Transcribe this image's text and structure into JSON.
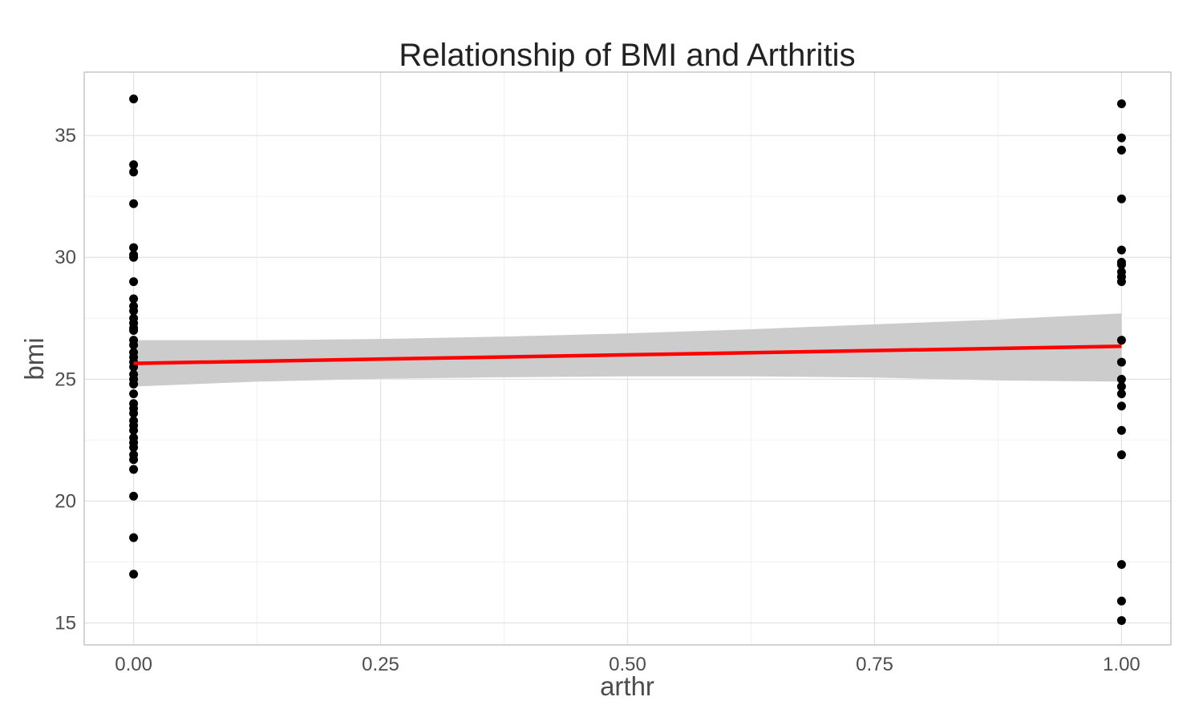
{
  "chart_data": {
    "type": "scatter",
    "title": "Relationship of BMI and Arthritis",
    "xlabel": "arthr",
    "ylabel": "bmi",
    "xlim": [
      -0.05,
      1.05
    ],
    "ylim": [
      14.1,
      37.6
    ],
    "x_ticks": [
      0.0,
      0.25,
      0.5,
      0.75,
      1.0
    ],
    "x_tick_labels": [
      "0.00",
      "0.25",
      "0.50",
      "0.75",
      "1.00"
    ],
    "y_ticks": [
      15,
      20,
      25,
      30,
      35
    ],
    "y_tick_labels": [
      "15",
      "20",
      "25",
      "30",
      "35"
    ],
    "grid": true,
    "theme": "light",
    "points": [
      {
        "x": 0,
        "y": 36.5
      },
      {
        "x": 0,
        "y": 33.8
      },
      {
        "x": 0,
        "y": 33.5
      },
      {
        "x": 0,
        "y": 32.2
      },
      {
        "x": 0,
        "y": 30.4
      },
      {
        "x": 0,
        "y": 30.1
      },
      {
        "x": 0,
        "y": 30.0
      },
      {
        "x": 0,
        "y": 29.0
      },
      {
        "x": 0,
        "y": 28.3
      },
      {
        "x": 0,
        "y": 28.0
      },
      {
        "x": 0,
        "y": 27.8
      },
      {
        "x": 0,
        "y": 27.5
      },
      {
        "x": 0,
        "y": 27.3
      },
      {
        "x": 0,
        "y": 27.1
      },
      {
        "x": 0,
        "y": 27.0
      },
      {
        "x": 0,
        "y": 26.6
      },
      {
        "x": 0,
        "y": 26.4
      },
      {
        "x": 0,
        "y": 26.1
      },
      {
        "x": 0,
        "y": 25.9
      },
      {
        "x": 0,
        "y": 25.7
      },
      {
        "x": 0,
        "y": 25.5
      },
      {
        "x": 0,
        "y": 25.2
      },
      {
        "x": 0,
        "y": 25.0
      },
      {
        "x": 0,
        "y": 24.8
      },
      {
        "x": 0,
        "y": 24.4
      },
      {
        "x": 0,
        "y": 24.0
      },
      {
        "x": 0,
        "y": 23.8
      },
      {
        "x": 0,
        "y": 23.6
      },
      {
        "x": 0,
        "y": 23.3
      },
      {
        "x": 0,
        "y": 23.1
      },
      {
        "x": 0,
        "y": 22.9
      },
      {
        "x": 0,
        "y": 22.6
      },
      {
        "x": 0,
        "y": 22.4
      },
      {
        "x": 0,
        "y": 22.2
      },
      {
        "x": 0,
        "y": 21.9
      },
      {
        "x": 0,
        "y": 21.7
      },
      {
        "x": 0,
        "y": 21.3
      },
      {
        "x": 0,
        "y": 20.2
      },
      {
        "x": 0,
        "y": 18.5
      },
      {
        "x": 0,
        "y": 17.0
      },
      {
        "x": 1,
        "y": 36.3
      },
      {
        "x": 1,
        "y": 34.9
      },
      {
        "x": 1,
        "y": 34.4
      },
      {
        "x": 1,
        "y": 32.4
      },
      {
        "x": 1,
        "y": 30.3
      },
      {
        "x": 1,
        "y": 29.8
      },
      {
        "x": 1,
        "y": 29.7
      },
      {
        "x": 1,
        "y": 29.4
      },
      {
        "x": 1,
        "y": 29.2
      },
      {
        "x": 1,
        "y": 29.0
      },
      {
        "x": 1,
        "y": 26.6
      },
      {
        "x": 1,
        "y": 25.7
      },
      {
        "x": 1,
        "y": 25.0
      },
      {
        "x": 1,
        "y": 24.7
      },
      {
        "x": 1,
        "y": 24.4
      },
      {
        "x": 1,
        "y": 23.9
      },
      {
        "x": 1,
        "y": 22.9
      },
      {
        "x": 1,
        "y": 21.9
      },
      {
        "x": 1,
        "y": 17.4
      },
      {
        "x": 1,
        "y": 15.9
      },
      {
        "x": 1,
        "y": 15.1
      }
    ],
    "point_color": "#000000",
    "fit_line": {
      "x": [
        0.0,
        1.0
      ],
      "y": [
        25.65,
        26.35
      ],
      "color": "#ff0000"
    },
    "confidence_band": {
      "x": [
        0.0,
        0.125,
        0.25,
        0.375,
        0.5,
        0.625,
        0.75,
        0.875,
        1.0
      ],
      "lower": [
        24.7,
        24.9,
        25.02,
        25.08,
        25.12,
        25.12,
        25.07,
        24.95,
        24.9
      ],
      "upper": [
        26.6,
        26.6,
        26.65,
        26.75,
        26.88,
        27.05,
        27.25,
        27.45,
        27.7
      ],
      "color": "#cccccc"
    }
  }
}
